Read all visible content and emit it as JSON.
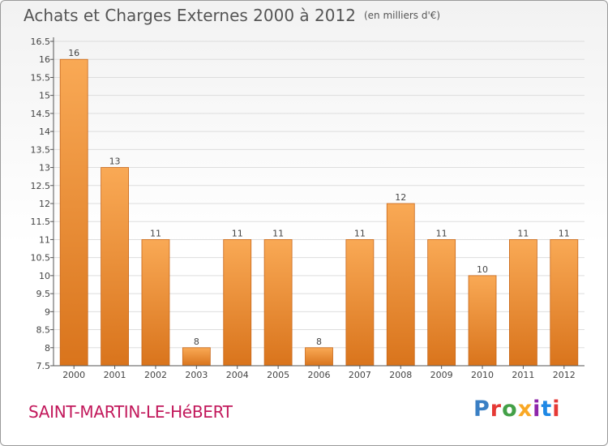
{
  "header": {
    "title": "Achats et Charges Externes 2000 à 2012",
    "unit": "(en milliers d'€)"
  },
  "footer": {
    "commune": "SAINT-MARTIN-LE-HéBERT",
    "logo_letters": [
      {
        "char": "P",
        "color": "#3a7fc4"
      },
      {
        "char": "r",
        "color": "#e53935"
      },
      {
        "char": "o",
        "color": "#43a047"
      },
      {
        "char": "x",
        "color": "#f9a825"
      },
      {
        "char": "i",
        "color": "#8e24aa"
      },
      {
        "char": "t",
        "color": "#1e88e5"
      },
      {
        "char": "i",
        "color": "#e53935"
      }
    ]
  },
  "chart_data": {
    "type": "bar",
    "title": "Achats et Charges Externes 2000 à 2012",
    "subtitle": "(en milliers d'€)",
    "xlabel": "",
    "ylabel": "",
    "categories": [
      "2000",
      "2001",
      "2002",
      "2003",
      "2004",
      "2005",
      "2006",
      "2007",
      "2008",
      "2009",
      "2010",
      "2011",
      "2012"
    ],
    "values": [
      16,
      13,
      11,
      8,
      11,
      11,
      8,
      11,
      12,
      11,
      10,
      11,
      11
    ],
    "data_labels": [
      "16",
      "13",
      "11",
      "8",
      "11",
      "11",
      "8",
      "11",
      "12",
      "11",
      "10",
      "11",
      "11"
    ],
    "ylim": [
      7.5,
      16.5
    ],
    "yticks": [
      7.5,
      8,
      8.5,
      9,
      9.5,
      10,
      10.5,
      11,
      11.5,
      12,
      12.5,
      13,
      13.5,
      14,
      14.5,
      15,
      15.5,
      16,
      16.5
    ],
    "ytick_labels": [
      "7.5",
      "8",
      "8.5",
      "9",
      "9.5",
      "10",
      "10.5",
      "11",
      "11.5",
      "12",
      "12.5",
      "13",
      "13.5",
      "14",
      "14.5",
      "15",
      "15.5",
      "16",
      "16.5"
    ],
    "grid": true,
    "colors": {
      "bar_light": "#f9a955",
      "bar_dark": "#d9741c",
      "bar_edge": "#c8671a",
      "grid": "#dddddd",
      "axis": "#555555"
    }
  }
}
